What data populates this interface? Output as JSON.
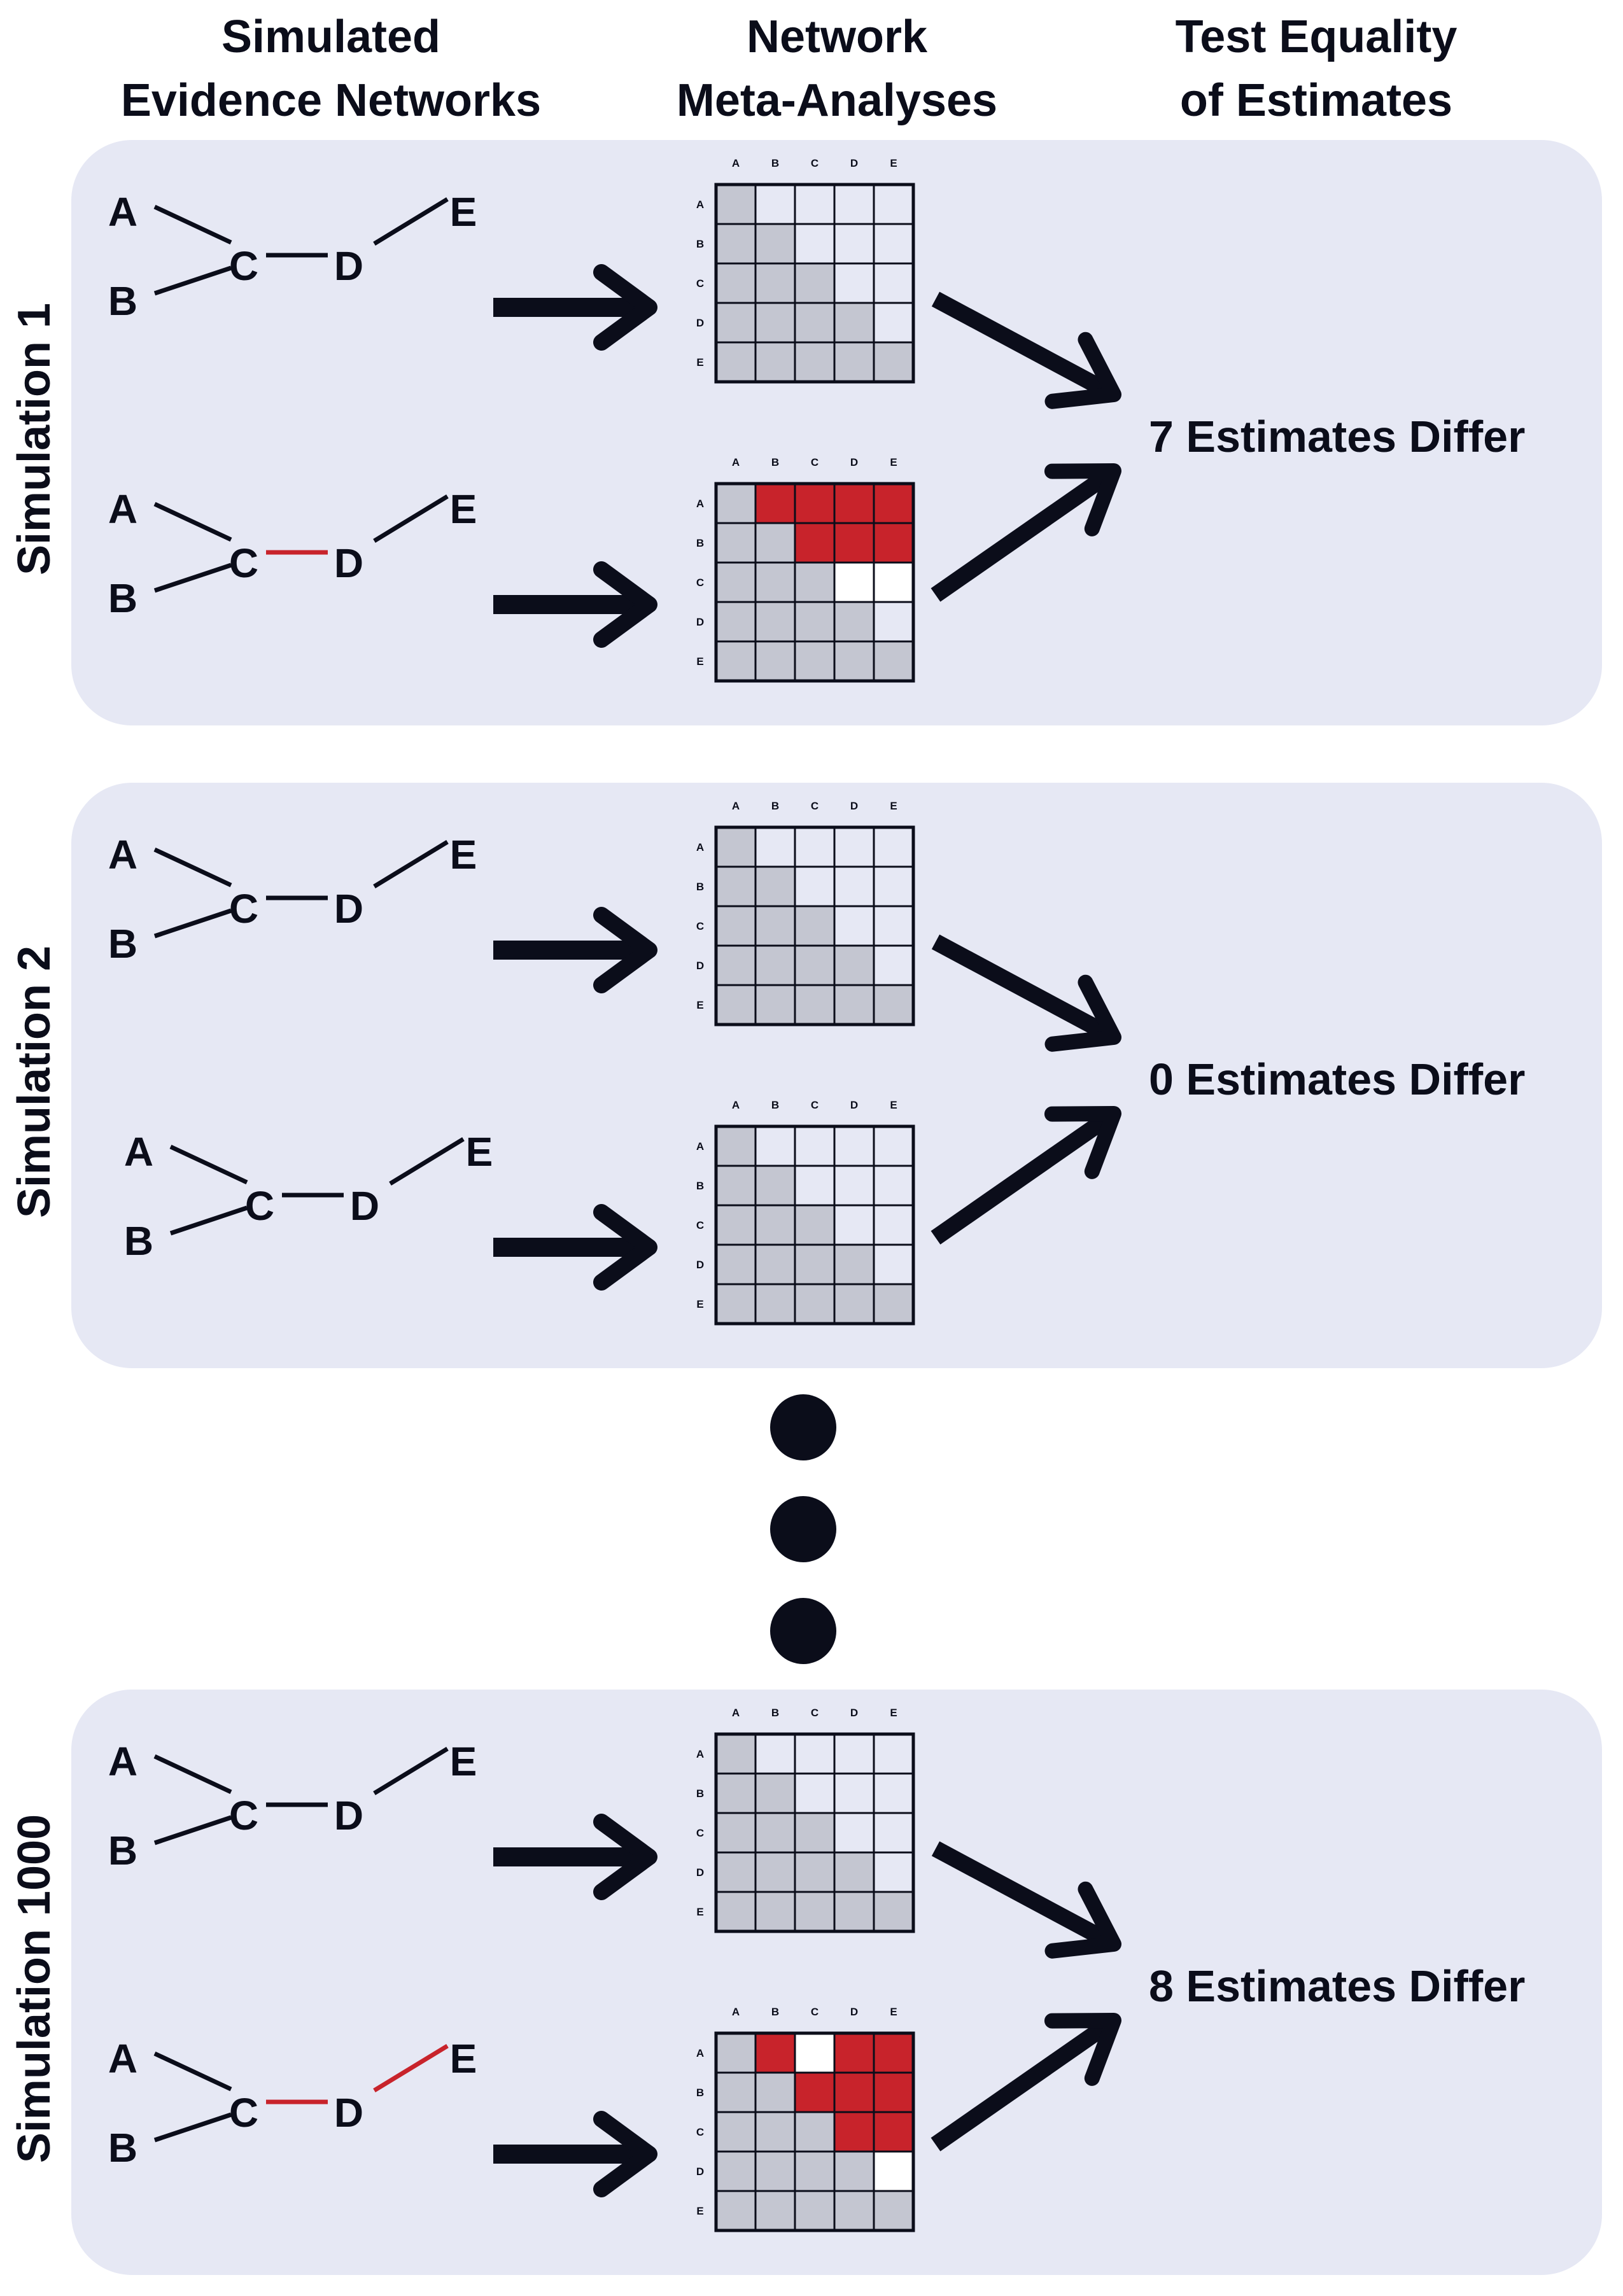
{
  "headers": {
    "col1": [
      "Simulated",
      "Evidence Networks"
    ],
    "col2": [
      "Network",
      "Meta-Analyses"
    ],
    "col3": [
      "Test Equality",
      "of Estimates"
    ]
  },
  "treatments": [
    "A",
    "B",
    "C",
    "D",
    "E"
  ],
  "colors": {
    "panel": "#e6e8f4",
    "lower_cell": "#c4c6d1",
    "upper_cell": "#e6e8f4",
    "differ_cell": "#c8232b",
    "grid_line": "#0b0d1a",
    "red_edge": "#c8232b",
    "ink": "#0b0d1a"
  },
  "simulations": [
    {
      "label": "Simulation 1",
      "result": "7 Estimates Differ",
      "networks": [
        {
          "red_edges": []
        },
        {
          "red_edges": [
            "C-D"
          ]
        }
      ],
      "matrices": [
        {
          "red_cells": [],
          "white_cells": []
        },
        {
          "red_cells": [
            [
              0,
              1
            ],
            [
              0,
              2
            ],
            [
              0,
              3
            ],
            [
              0,
              4
            ],
            [
              1,
              2
            ],
            [
              1,
              3
            ],
            [
              1,
              4
            ]
          ],
          "white_cells": [
            [
              2,
              3
            ],
            [
              2,
              4
            ]
          ]
        }
      ]
    },
    {
      "label": "Simulation 2",
      "result": "0 Estimates Differ",
      "networks": [
        {
          "red_edges": []
        },
        {
          "red_edges": []
        }
      ],
      "matrices": [
        {
          "red_cells": [],
          "white_cells": []
        },
        {
          "red_cells": [],
          "white_cells": []
        }
      ]
    },
    {
      "label": "Simulation 1000",
      "result": "8 Estimates Differ",
      "networks": [
        {
          "red_edges": []
        },
        {
          "red_edges": [
            "C-D",
            "D-E"
          ]
        }
      ],
      "matrices": [
        {
          "red_cells": [],
          "white_cells": []
        },
        {
          "red_cells": [
            [
              0,
              1
            ],
            [
              0,
              3
            ],
            [
              0,
              4
            ],
            [
              1,
              2
            ],
            [
              1,
              3
            ],
            [
              1,
              4
            ],
            [
              2,
              3
            ],
            [
              2,
              4
            ]
          ],
          "white_cells": [
            [
              0,
              2
            ],
            [
              3,
              4
            ]
          ]
        }
      ]
    }
  ],
  "ellipsis_dots": 3
}
